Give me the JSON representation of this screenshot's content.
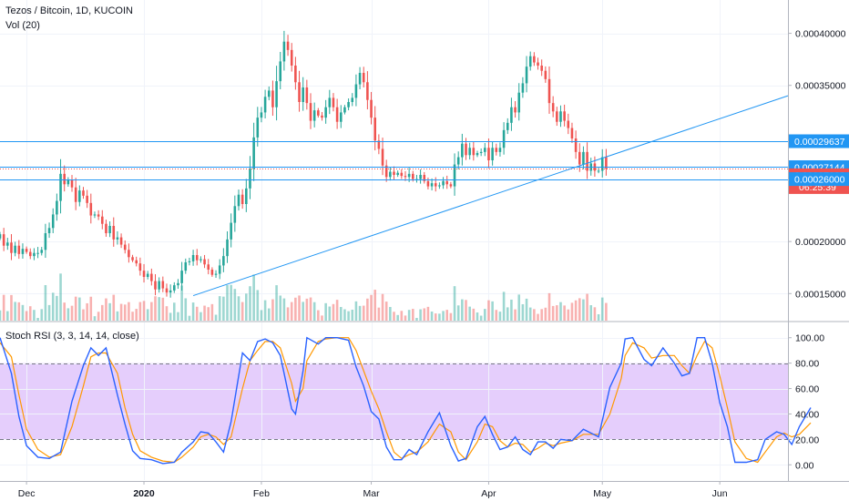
{
  "chart_data": {
    "type": "candlestick",
    "title": "Tezos / Bitcoin, 1D, KUCOIN",
    "volume_label": "Vol (20)",
    "price_axis": {
      "ylim": [
        0.000124,
        0.000432
      ],
      "ticks": [
        "0.00040000",
        "0.00035000",
        "0.00020000",
        "0.00015000"
      ],
      "tick_values": [
        0.0004,
        0.00035,
        0.0002,
        0.00015
      ]
    },
    "time_axis": {
      "labels": [
        "Dec",
        "2020",
        "Feb",
        "Mar",
        "Apr",
        "May",
        "Jun"
      ],
      "label_days": [
        3,
        34,
        65,
        94,
        125,
        155,
        186
      ],
      "day_range": [
        -4,
        204
      ]
    },
    "horizontal_levels": [
      {
        "price": "0.00029637",
        "value": 0.00029637,
        "style": "solid"
      },
      {
        "price": "0.00027144",
        "value": 0.00027144,
        "style": "solid"
      },
      {
        "price": "0.00026000",
        "value": 0.00026,
        "style": "solid"
      }
    ],
    "current_price": {
      "price": "0.00027022",
      "value": 0.00027022,
      "countdown": "06:25:39"
    },
    "trendline": {
      "from": {
        "day": 47,
        "value": 0.000148
      },
      "to": {
        "day": 204,
        "value": 0.00034
      }
    },
    "candles": {
      "start_day": -4,
      "close": [
        0.000207,
        0.000196,
        0.000199,
        0.000189,
        0.000196,
        0.000188,
        0.000193,
        0.00019,
        0.000186,
        0.000189,
        0.000189,
        0.000192,
        0.000208,
        0.000213,
        0.000226,
        0.000239,
        0.000265,
        0.000255,
        0.000259,
        0.000252,
        0.000238,
        0.000249,
        0.000244,
        0.000237,
        0.000225,
        0.000226,
        0.000224,
        0.000217,
        0.000208,
        0.000215,
        0.000202,
        0.000204,
        0.000197,
        0.000192,
        0.000185,
        0.000182,
        0.000179,
        0.000172,
        0.000166,
        0.000169,
        0.000162,
        0.000154,
        0.000162,
        0.000155,
        0.000151,
        0.000153,
        0.000158,
        0.00016,
        0.000172,
        0.00018,
        0.000181,
        0.000187,
        0.000182,
        0.000183,
        0.000178,
        0.000173,
        0.000168,
        0.000169,
        0.000177,
        0.000186,
        0.000202,
        0.000218,
        0.000234,
        0.000245,
        0.000236,
        0.000251,
        0.00027,
        0.0003,
        0.000319,
        0.000324,
        0.000339,
        0.000345,
        0.000329,
        0.000354,
        0.000373,
        0.000392,
        0.000384,
        0.000369,
        0.000353,
        0.000334,
        0.000348,
        0.000333,
        0.000316,
        0.000326,
        0.000321,
        0.000319,
        0.000329,
        0.000338,
        0.000329,
        0.000315,
        0.000324,
        0.000329,
        0.000334,
        0.000338,
        0.000351,
        0.000362,
        0.000353,
        0.000336,
        0.000319,
        0.000297,
        0.000289,
        0.000273,
        0.000262,
        0.000267,
        0.000264,
        0.000266,
        0.000263,
        0.000262,
        0.000265,
        0.00026,
        0.00026,
        0.000264,
        0.000258,
        0.000253,
        0.000256,
        0.000253,
        0.000254,
        0.000258,
        0.000255,
        0.000253,
        0.000274,
        0.000281,
        0.000294,
        0.000283,
        0.00029,
        0.000283,
        0.000285,
        0.000286,
        0.00029,
        0.000278,
        0.00029,
        0.000286,
        0.00029,
        0.000307,
        0.000314,
        0.000329,
        0.000324,
        0.000343,
        0.000352,
        0.000368,
        0.000378,
        0.000372,
        0.000369,
        0.000364,
        0.000356,
        0.000333,
        0.000325,
        0.000315,
        0.000325,
        0.000316,
        0.000309,
        0.000299,
        0.000286,
        0.000274,
        0.000286,
        0.000268,
        0.000275,
        0.000268,
        0.000268,
        0.000281,
        0.00027
      ],
      "open_first": 0.000203,
      "up_color": "#26a69a",
      "down_color": "#ef5350"
    },
    "stoch_rsi": {
      "label": "Stoch RSI (3, 3, 14, 14, close)",
      "ylim": [
        -12,
        112
      ],
      "ticks": [
        "100.00",
        "80.00",
        "60.00",
        "40.00",
        "20.00",
        "0.00"
      ],
      "tick_values": [
        100,
        80,
        60,
        40,
        20,
        0
      ],
      "band": [
        20,
        80
      ],
      "k_color": "#2962ff",
      "d_color": "#ff9800",
      "band_color": "#e1c6fb",
      "k_points": [
        [
          -4,
          100
        ],
        [
          -1,
          72
        ],
        [
          1,
          38
        ],
        [
          3,
          15
        ],
        [
          6,
          6
        ],
        [
          9,
          5
        ],
        [
          12,
          10
        ],
        [
          15,
          50
        ],
        [
          18,
          78
        ],
        [
          20,
          92
        ],
        [
          22,
          86
        ],
        [
          24,
          92
        ],
        [
          27,
          55
        ],
        [
          29,
          32
        ],
        [
          31,
          11
        ],
        [
          33,
          5
        ],
        [
          36,
          4
        ],
        [
          39,
          1
        ],
        [
          42,
          2
        ],
        [
          44,
          10
        ],
        [
          47,
          18
        ],
        [
          49,
          26
        ],
        [
          51,
          25
        ],
        [
          53,
          18
        ],
        [
          55,
          10
        ],
        [
          57,
          34
        ],
        [
          60,
          88
        ],
        [
          62,
          82
        ],
        [
          64,
          97
        ],
        [
          66,
          99
        ],
        [
          68,
          96
        ],
        [
          70,
          86
        ],
        [
          73,
          44
        ],
        [
          74,
          40
        ],
        [
          76,
          74
        ],
        [
          77,
          100
        ],
        [
          80,
          95
        ],
        [
          82,
          100
        ],
        [
          85,
          100
        ],
        [
          88,
          98
        ],
        [
          90,
          77
        ],
        [
          92,
          62
        ],
        [
          94,
          42
        ],
        [
          96,
          36
        ],
        [
          98,
          14
        ],
        [
          100,
          4
        ],
        [
          102,
          4
        ],
        [
          104,
          12
        ],
        [
          106,
          8
        ],
        [
          109,
          26
        ],
        [
          112,
          41
        ],
        [
          115,
          15
        ],
        [
          117,
          3
        ],
        [
          119,
          5
        ],
        [
          122,
          30
        ],
        [
          124,
          38
        ],
        [
          126,
          24
        ],
        [
          128,
          12
        ],
        [
          130,
          14
        ],
        [
          132,
          22
        ],
        [
          134,
          12
        ],
        [
          136,
          8
        ],
        [
          138,
          18
        ],
        [
          140,
          18
        ],
        [
          142,
          13
        ],
        [
          144,
          20
        ],
        [
          147,
          19
        ],
        [
          150,
          28
        ],
        [
          154,
          22
        ],
        [
          157,
          61
        ],
        [
          160,
          80
        ],
        [
          161,
          99
        ],
        [
          163,
          100
        ],
        [
          166,
          83
        ],
        [
          168,
          78
        ],
        [
          171,
          92
        ],
        [
          174,
          80
        ],
        [
          176,
          70
        ],
        [
          178,
          72
        ],
        [
          180,
          100
        ],
        [
          182,
          100
        ],
        [
          184,
          80
        ],
        [
          186,
          49
        ],
        [
          188,
          30
        ],
        [
          190,
          2
        ],
        [
          193,
          2
        ],
        [
          196,
          4
        ],
        [
          198,
          20
        ],
        [
          201,
          26
        ],
        [
          203,
          24
        ],
        [
          205,
          16
        ],
        [
          207,
          30
        ],
        [
          210,
          45
        ]
      ],
      "d_points": [
        [
          -4,
          96
        ],
        [
          -1,
          85
        ],
        [
          1,
          55
        ],
        [
          3,
          28
        ],
        [
          6,
          12
        ],
        [
          9,
          6
        ],
        [
          12,
          8
        ],
        [
          15,
          30
        ],
        [
          18,
          62
        ],
        [
          20,
          85
        ],
        [
          22,
          88
        ],
        [
          24,
          88
        ],
        [
          27,
          72
        ],
        [
          29,
          45
        ],
        [
          31,
          24
        ],
        [
          33,
          11
        ],
        [
          36,
          6
        ],
        [
          39,
          3
        ],
        [
          42,
          2
        ],
        [
          44,
          6
        ],
        [
          47,
          14
        ],
        [
          49,
          22
        ],
        [
          51,
          24
        ],
        [
          53,
          22
        ],
        [
          55,
          16
        ],
        [
          57,
          22
        ],
        [
          60,
          60
        ],
        [
          62,
          82
        ],
        [
          64,
          90
        ],
        [
          66,
          97
        ],
        [
          68,
          97
        ],
        [
          70,
          92
        ],
        [
          73,
          64
        ],
        [
          74,
          50
        ],
        [
          76,
          60
        ],
        [
          77,
          82
        ],
        [
          80,
          97
        ],
        [
          82,
          99
        ],
        [
          85,
          100
        ],
        [
          88,
          100
        ],
        [
          90,
          90
        ],
        [
          92,
          74
        ],
        [
          94,
          58
        ],
        [
          96,
          44
        ],
        [
          98,
          26
        ],
        [
          100,
          10
        ],
        [
          102,
          5
        ],
        [
          104,
          8
        ],
        [
          106,
          10
        ],
        [
          109,
          18
        ],
        [
          112,
          32
        ],
        [
          115,
          26
        ],
        [
          117,
          10
        ],
        [
          119,
          4
        ],
        [
          122,
          18
        ],
        [
          124,
          32
        ],
        [
          126,
          30
        ],
        [
          128,
          19
        ],
        [
          130,
          14
        ],
        [
          132,
          17
        ],
        [
          134,
          16
        ],
        [
          136,
          10
        ],
        [
          138,
          13
        ],
        [
          140,
          17
        ],
        [
          142,
          15
        ],
        [
          144,
          17
        ],
        [
          147,
          19
        ],
        [
          150,
          24
        ],
        [
          154,
          24
        ],
        [
          157,
          40
        ],
        [
          160,
          68
        ],
        [
          161,
          86
        ],
        [
          163,
          96
        ],
        [
          166,
          92
        ],
        [
          168,
          84
        ],
        [
          171,
          86
        ],
        [
          174,
          86
        ],
        [
          176,
          78
        ],
        [
          178,
          72
        ],
        [
          180,
          86
        ],
        [
          182,
          97
        ],
        [
          184,
          92
        ],
        [
          186,
          70
        ],
        [
          188,
          45
        ],
        [
          190,
          18
        ],
        [
          193,
          5
        ],
        [
          196,
          2
        ],
        [
          198,
          10
        ],
        [
          201,
          22
        ],
        [
          203,
          25
        ],
        [
          205,
          22
        ],
        [
          207,
          24
        ],
        [
          210,
          33
        ]
      ]
    }
  }
}
